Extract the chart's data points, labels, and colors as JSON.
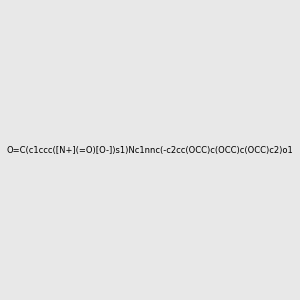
{
  "smiles": "O=C(c1ccc([N+](=O)[O-])s1)Nc1nnc(-c2cc(OCC)c(OCC)c(OCC)c2)o1",
  "background_color": "#e8e8e8",
  "figsize": [
    3.0,
    3.0
  ],
  "dpi": 100
}
